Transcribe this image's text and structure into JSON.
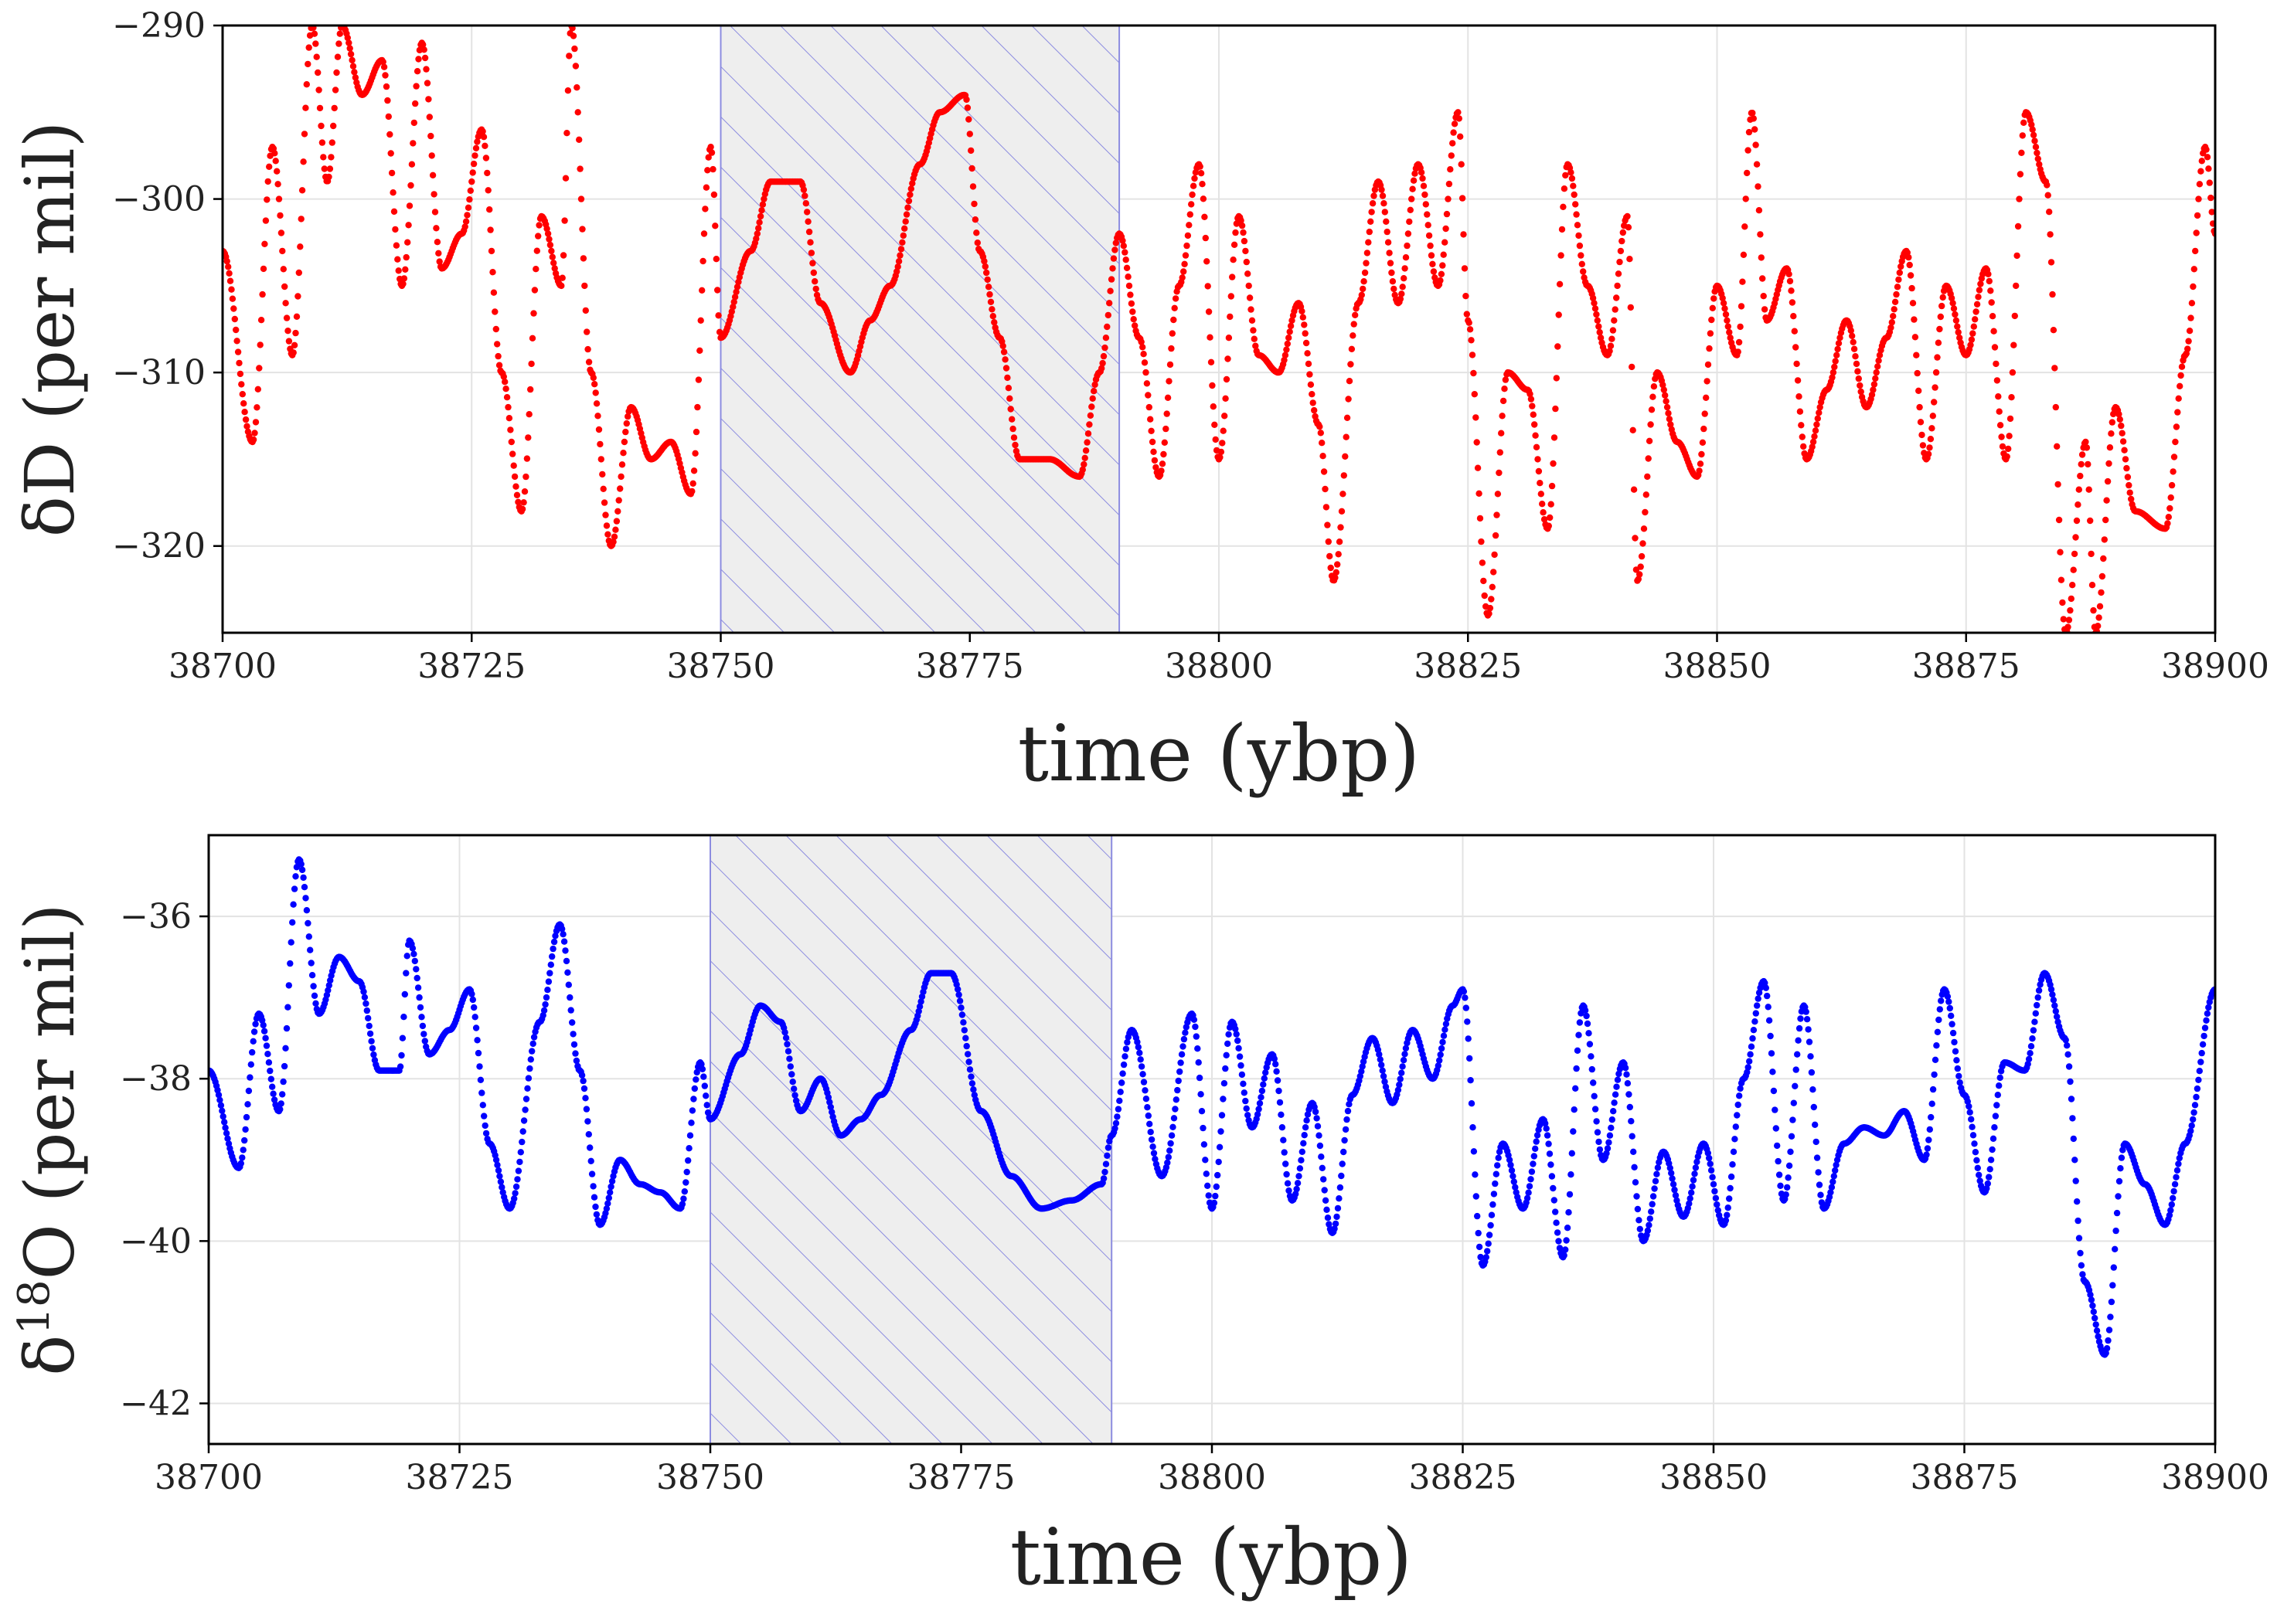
{
  "chart_data": [
    {
      "type": "scatter",
      "panel": "top",
      "title": "",
      "xlabel": "time (ybp)",
      "ylabel": "δD (per mil)",
      "xlim": [
        38700,
        38900
      ],
      "ylim": [
        -325,
        -290
      ],
      "xticks": [
        38700,
        38725,
        38750,
        38775,
        38800,
        38825,
        38850,
        38875,
        38900
      ],
      "xtick_labels": [
        "38700",
        "38725",
        "38750",
        "38775",
        "38800",
        "38825",
        "38850",
        "38875",
        "38900"
      ],
      "yticks": [
        -290,
        -300,
        -310,
        -320
      ],
      "ytick_labels": [
        "−290",
        "−300",
        "−310",
        "−320"
      ],
      "grid": true,
      "shaded_region": {
        "x_start": 38750,
        "x_end": 38790,
        "fill": "#eeeeee",
        "hatch": "diagonal",
        "hatch_color": "#8c8ce0"
      },
      "series": [
        {
          "name": "δD",
          "color": "#ff0000",
          "x": [
            38700,
            38703,
            38705,
            38707,
            38709,
            38710.5,
            38712,
            38714,
            38716,
            38718,
            38720,
            38722,
            38724,
            38726,
            38728,
            38730,
            38732,
            38734,
            38735,
            38737,
            38739,
            38741,
            38743,
            38745,
            38747,
            38749,
            38750,
            38753,
            38755,
            38758,
            38760,
            38763,
            38765,
            38767,
            38770,
            38772,
            38774.5,
            38776,
            38778,
            38780,
            38783,
            38786,
            38788,
            38790,
            38792,
            38794,
            38796,
            38798,
            38800,
            38802,
            38804,
            38806,
            38808,
            38810,
            38811.5,
            38814,
            38816,
            38818,
            38820,
            38822,
            38824,
            38825,
            38827,
            38829,
            38831,
            38833,
            38835,
            38837,
            38839,
            38841,
            38842,
            38844,
            38846,
            38848,
            38850,
            38852,
            38853.5,
            38855,
            38857,
            38859,
            38861,
            38863,
            38865,
            38867,
            38869,
            38871,
            38873,
            38875,
            38877,
            38879,
            38881,
            38883,
            38885,
            38887,
            38888,
            38890,
            38892,
            38895,
            38897,
            38899,
            38900
          ],
          "y": [
            -303,
            -314,
            -297,
            -309,
            -290,
            -299,
            -290,
            -294,
            -292,
            -305,
            -291,
            -304,
            -302,
            -296,
            -310,
            -318,
            -301,
            -305,
            -290,
            -310,
            -320,
            -312,
            -315,
            -314,
            -317,
            -297,
            -308,
            -303,
            -299,
            -299,
            -306,
            -310,
            -307,
            -305,
            -298,
            -295,
            -294,
            -303,
            -308,
            -315,
            -315,
            -316,
            -310,
            -302,
            -308,
            -316,
            -305,
            -298,
            -315,
            -301,
            -309,
            -310,
            -306,
            -313,
            -322,
            -306,
            -299,
            -306,
            -298,
            -305,
            -295,
            -307,
            -324,
            -310,
            -311,
            -319,
            -298,
            -305,
            -309,
            -301,
            -322,
            -310,
            -314,
            -316,
            -305,
            -309,
            -295,
            -307,
            -304,
            -315,
            -311,
            -307,
            -312,
            -308,
            -303,
            -315,
            -305,
            -309,
            -304,
            -315,
            -295,
            -299,
            -325,
            -314,
            -325,
            -312,
            -318,
            -319,
            -309,
            -297,
            -302
          ]
        }
      ]
    },
    {
      "type": "scatter",
      "panel": "bottom",
      "title": "",
      "xlabel": "time (ybp)",
      "ylabel": "δ18O (per mil)",
      "ylabel_parts": {
        "prefix": "δ",
        "superscript": "18",
        "suffix": "O (per mil)"
      },
      "xlim": [
        38700,
        38900
      ],
      "ylim": [
        -42.5,
        -35
      ],
      "xticks": [
        38700,
        38725,
        38750,
        38775,
        38800,
        38825,
        38850,
        38875,
        38900
      ],
      "xtick_labels": [
        "38700",
        "38725",
        "38750",
        "38775",
        "38800",
        "38825",
        "38850",
        "38875",
        "38900"
      ],
      "yticks": [
        -36,
        -38,
        -40,
        -42
      ],
      "ytick_labels": [
        "−36",
        "−38",
        "−40",
        "−42"
      ],
      "grid": true,
      "shaded_region": {
        "x_start": 38750,
        "x_end": 38790,
        "fill": "#eeeeee",
        "hatch": "diagonal",
        "hatch_color": "#8c8ce0"
      },
      "series": [
        {
          "name": "δ18O",
          "color": "#0000ff",
          "x": [
            38700,
            38703,
            38705,
            38707,
            38709,
            38711,
            38713,
            38715,
            38717,
            38719,
            38720,
            38722,
            38724,
            38726,
            38728,
            38730,
            38733,
            38735,
            38737,
            38739,
            38741,
            38743,
            38745,
            38747,
            38749,
            38750,
            38753,
            38755,
            38757,
            38759,
            38761,
            38763,
            38765,
            38767,
            38770,
            38772,
            38774,
            38777,
            38780,
            38783,
            38786,
            38789,
            38790,
            38792,
            38795,
            38798,
            38800,
            38802,
            38804,
            38806,
            38808,
            38810,
            38812,
            38814,
            38816,
            38818,
            38820,
            38822,
            38824,
            38825,
            38827,
            38829,
            38831,
            38833,
            38835,
            38837,
            38839,
            38841,
            38843,
            38845,
            38847,
            38849,
            38851,
            38853,
            38855,
            38857,
            38859,
            38861,
            38863,
            38865,
            38867,
            38869,
            38871,
            38873,
            38875,
            38877,
            38879,
            38881,
            38883,
            38885,
            38887,
            38889,
            38891,
            38893,
            38895,
            38897,
            38900
          ],
          "y": [
            -37.9,
            -39.1,
            -37.2,
            -38.4,
            -35.3,
            -37.2,
            -36.5,
            -36.8,
            -37.9,
            -37.9,
            -36.3,
            -37.7,
            -37.4,
            -36.9,
            -38.8,
            -39.6,
            -37.3,
            -36.1,
            -37.9,
            -39.8,
            -39,
            -39.3,
            -39.4,
            -39.6,
            -37.8,
            -38.5,
            -37.7,
            -37.1,
            -37.3,
            -38.4,
            -38,
            -38.7,
            -38.5,
            -38.2,
            -37.4,
            -36.7,
            -36.7,
            -38.4,
            -39.2,
            -39.6,
            -39.5,
            -39.3,
            -38.7,
            -37.4,
            -39.2,
            -37.2,
            -39.6,
            -37.3,
            -38.6,
            -37.7,
            -39.5,
            -38.3,
            -39.9,
            -38.2,
            -37.5,
            -38.3,
            -37.4,
            -38,
            -37.1,
            -36.9,
            -40.3,
            -38.8,
            -39.6,
            -38.5,
            -40.2,
            -37.1,
            -39,
            -37.8,
            -40,
            -38.9,
            -39.7,
            -38.8,
            -39.8,
            -38,
            -36.8,
            -39.5,
            -37.1,
            -39.6,
            -38.8,
            -38.6,
            -38.7,
            -38.4,
            -39,
            -36.9,
            -38.2,
            -39.4,
            -37.8,
            -37.9,
            -36.7,
            -37.5,
            -40.5,
            -41.4,
            -38.8,
            -39.3,
            -39.8,
            -38.8,
            -36.9
          ]
        }
      ]
    }
  ]
}
